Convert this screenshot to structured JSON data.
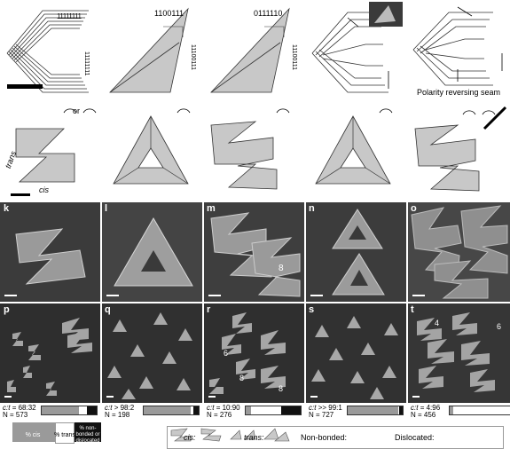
{
  "panel_labels": [
    "a",
    "b",
    "c",
    "d",
    "e",
    "f",
    "g",
    "h",
    "i",
    "j",
    "k",
    "l",
    "m",
    "n",
    "o",
    "p",
    "q",
    "r",
    "s",
    "t"
  ],
  "diagram_text": {
    "b_seq": "1100111",
    "c_seq": "0111110",
    "a_right_top": "11111111",
    "a_right_bottom": "11111111",
    "b_right": "11100111",
    "c_right": "11100111",
    "e_annotation": "Polarity reversing seam",
    "f_trans": "trans",
    "f_cis": "cis",
    "f_or": "or"
  },
  "micro_labels": {
    "m_count": "8",
    "r_a": "6",
    "r_b": "8",
    "r_c": "8",
    "t_a": "4",
    "t_b": "6"
  },
  "stats": [
    {
      "ratio_label": "c:t",
      "ratio": "= 68:32",
      "n": "N = 573",
      "fractions": [
        0.68,
        0.14,
        0.18
      ]
    },
    {
      "ratio_label": "c:t",
      "ratio": "> 98:2",
      "n": "N = 198",
      "fractions": [
        0.85,
        0.05,
        0.1
      ]
    },
    {
      "ratio_label": "c:t",
      "ratio": "= 10:90",
      "n": "N = 276",
      "fractions": [
        0.1,
        0.55,
        0.35
      ]
    },
    {
      "ratio_label": "c:t",
      "ratio": ">> 99:1",
      "n": "N = 727",
      "fractions": [
        0.92,
        0.02,
        0.06
      ]
    },
    {
      "ratio_label": "c:t",
      "ratio": "= 4:96",
      "n": "N = 456",
      "fractions": [
        0.04,
        0.61,
        0.35
      ]
    }
  ],
  "legend_left": {
    "cis": "% cis",
    "trans": "% trans",
    "other": "% non-bonded or dislocated"
  },
  "legend_right": {
    "cis": "cis:",
    "trans": "trans:",
    "nonbonded": "Non-bonded:",
    "dislocated": "Dislocated:"
  },
  "colors": {
    "cis": "#9a9a9a",
    "trans": "#ffffff",
    "other": "#111111",
    "diagram_fill": "#c8c8c8"
  }
}
